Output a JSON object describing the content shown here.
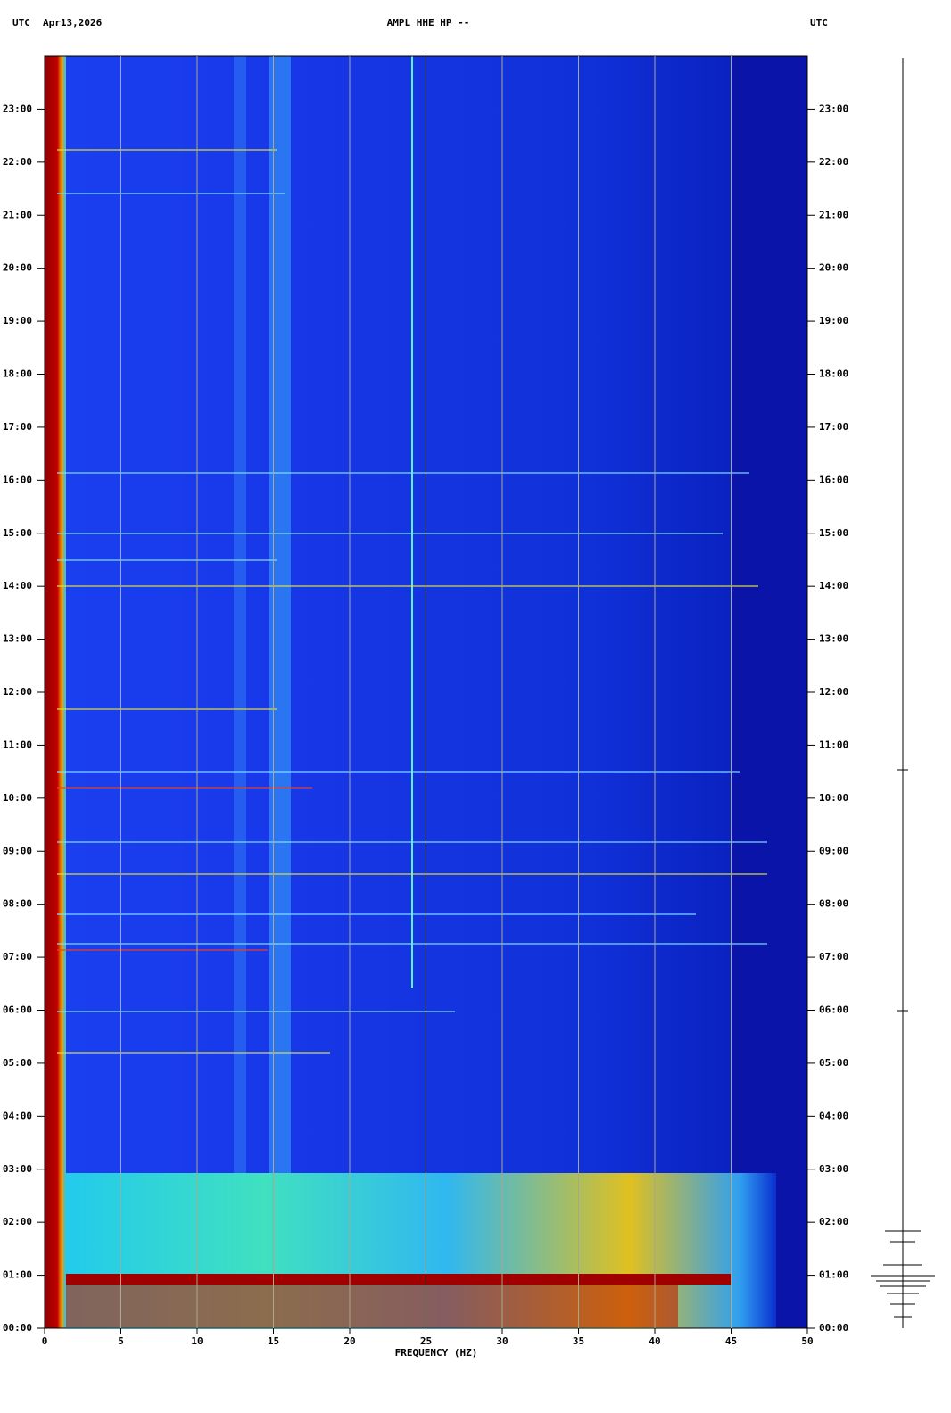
{
  "chart_data": {
    "type": "spectrogram",
    "header_left": "UTC",
    "date": "Apr13,2026",
    "title": "AMPL HHE HP --",
    "header_right": "UTC",
    "xlabel": "FREQUENCY (HZ)",
    "xlim": [
      0,
      50
    ],
    "xticks": [
      0,
      5,
      10,
      15,
      20,
      25,
      30,
      35,
      40,
      45,
      50
    ],
    "ylim": [
      0,
      24
    ],
    "yticks": [
      {
        "value": 0,
        "label": "00:00"
      },
      {
        "value": 1,
        "label": "01:00"
      },
      {
        "value": 2,
        "label": "02:00"
      },
      {
        "value": 3,
        "label": "03:00"
      },
      {
        "value": 4,
        "label": "04:00"
      },
      {
        "value": 5,
        "label": "05:00"
      },
      {
        "value": 6,
        "label": "06:00"
      },
      {
        "value": 7,
        "label": "07:00"
      },
      {
        "value": 8,
        "label": "08:00"
      },
      {
        "value": 9,
        "label": "09:00"
      },
      {
        "value": 10,
        "label": "10:00"
      },
      {
        "value": 11,
        "label": "11:00"
      },
      {
        "value": 12,
        "label": "12:00"
      },
      {
        "value": 13,
        "label": "13:00"
      },
      {
        "value": 14,
        "label": "14:00"
      },
      {
        "value": 15,
        "label": "15:00"
      },
      {
        "value": 16,
        "label": "16:00"
      },
      {
        "value": 17,
        "label": "17:00"
      },
      {
        "value": 18,
        "label": "18:00"
      },
      {
        "value": 19,
        "label": "19:00"
      },
      {
        "value": 20,
        "label": "20:00"
      },
      {
        "value": 21,
        "label": "21:00"
      },
      {
        "value": 22,
        "label": "22:00"
      },
      {
        "value": 23,
        "label": "23:00"
      }
    ],
    "grid": true
  }
}
